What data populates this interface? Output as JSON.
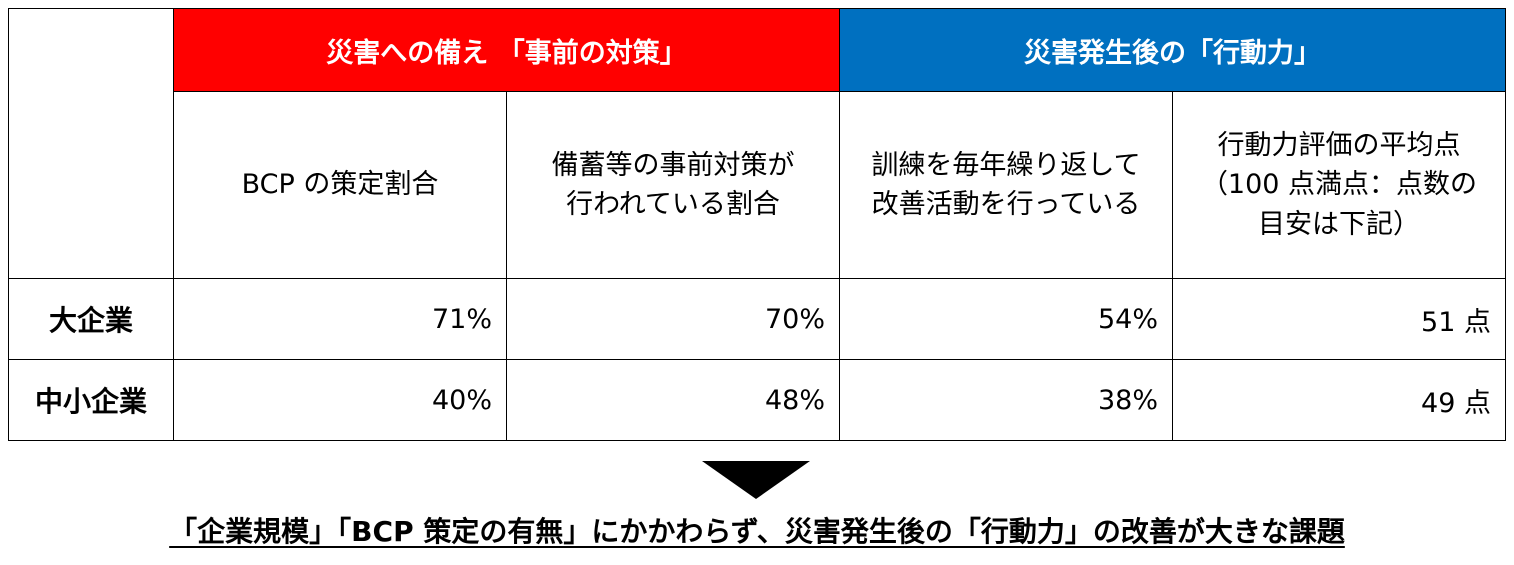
{
  "table": {
    "groups": {
      "preparation": "災害への備え 「事前の対策」",
      "action": "災害発生後の「行動力」"
    },
    "columns": {
      "bcp": "BCP の策定割合",
      "stockpile_line1": "備蓄等の事前対策が",
      "stockpile_line2": "行われている割合",
      "training_line1": "訓練を毎年繰り返して",
      "training_line2": "改善活動を行っている",
      "score_line1": "行動力評価の平均点",
      "score_line2": "（100 点満点：点数の",
      "score_line3": "目安は下記）"
    },
    "rows": {
      "large": {
        "label": "大企業",
        "bcp": "71%",
        "stockpile": "70%",
        "training": "54%",
        "score": "51 点"
      },
      "sme": {
        "label": "中小企業",
        "bcp": "40%",
        "stockpile": "48%",
        "training": "38%",
        "score": "49 点"
      }
    }
  },
  "conclusion": "「企業規模」「BCP 策定の有無」にかかわらず、災害発生後の「行動力」の改善が大きな課題",
  "colors": {
    "preparation_header": "#ff0000",
    "action_header": "#0070c0"
  }
}
